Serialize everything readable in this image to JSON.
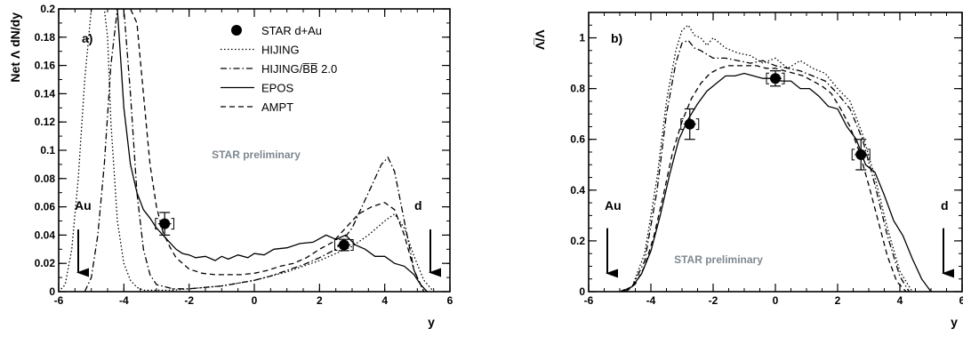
{
  "chart_data": [
    {
      "type": "line",
      "panel_label": "a)",
      "ylabel": "Net Λ dN/dy",
      "xlabel": "y",
      "xlim": [
        -6,
        6
      ],
      "ylim": [
        0,
        0.2
      ],
      "xticks": [
        "-6",
        "-4",
        "-2",
        "0",
        "2",
        "4",
        "6"
      ],
      "yticks": [
        "0",
        "0.02",
        "0.04",
        "0.06",
        "0.08",
        "0.1",
        "0.12",
        "0.14",
        "0.16",
        "0.18",
        "0.2"
      ],
      "watermark": "STAR preliminary",
      "arrows": [
        {
          "label": "Au",
          "x": -5.4,
          "y_from": 0.044,
          "y_to": 0.006
        },
        {
          "label": "d",
          "x": 5.4,
          "y_from": 0.044,
          "y_to": 0.006
        }
      ],
      "legend": [
        {
          "label": "STAR d+Au",
          "style": "marker"
        },
        {
          "label": "HIJING",
          "style": "dotted"
        },
        {
          "label": "HIJING/B̅B̅ 2.0",
          "style": "dashdot"
        },
        {
          "label": "EPOS",
          "style": "solid"
        },
        {
          "label": "AMPT",
          "style": "dashed"
        }
      ],
      "points": [
        {
          "x": -2.75,
          "y": 0.048,
          "yerr": 0.008,
          "xerr": 0.2
        },
        {
          "x": 2.75,
          "y": 0.033,
          "yerr": 0.004,
          "xerr": 0.2
        }
      ],
      "series": [
        {
          "name": "HIJING",
          "style": "dotted",
          "x": [
            -6,
            -5.8,
            -5.6,
            -5.4,
            -5.2,
            -5.0,
            -4.8,
            -4.7,
            -4.6,
            -4.5,
            -4.4,
            -4.2,
            -4.0,
            -3.8,
            -3.6,
            -3.4,
            -3.2,
            -3.0,
            -2.5,
            -2.0,
            -1.5,
            -1.0,
            -0.5,
            0,
            0.5,
            1.0,
            1.5,
            2.0,
            2.5,
            3.0,
            3.5,
            4.0,
            4.3,
            4.6,
            4.9,
            5.2,
            5.5
          ],
          "y": [
            0,
            0.005,
            0.03,
            0.08,
            0.15,
            0.2,
            0.2,
            0.2,
            0.2,
            0.18,
            0.12,
            0.05,
            0.02,
            0.008,
            0.003,
            0.001,
            0.001,
            0.001,
            0.001,
            0.002,
            0.003,
            0.004,
            0.006,
            0.008,
            0.011,
            0.014,
            0.018,
            0.022,
            0.027,
            0.032,
            0.04,
            0.05,
            0.055,
            0.045,
            0.025,
            0.008,
            0.0
          ]
        },
        {
          "name": "HIJING/B̅B̅ 2.0",
          "style": "dashdot",
          "x": [
            -5.2,
            -5.0,
            -4.8,
            -4.6,
            -4.4,
            -4.2,
            -4.0,
            -3.8,
            -3.6,
            -3.4,
            -3.2,
            -3.0,
            -2.5,
            -2.0,
            -1.5,
            -1.0,
            -0.5,
            0,
            0.5,
            1.0,
            1.5,
            2.0,
            2.5,
            3.0,
            3.3,
            3.6,
            3.9,
            4.1,
            4.3,
            4.6,
            4.9,
            5.2
          ],
          "y": [
            0.0,
            0.01,
            0.04,
            0.09,
            0.16,
            0.2,
            0.2,
            0.14,
            0.07,
            0.03,
            0.012,
            0.005,
            0.002,
            0.002,
            0.003,
            0.004,
            0.006,
            0.008,
            0.011,
            0.015,
            0.019,
            0.024,
            0.03,
            0.045,
            0.06,
            0.075,
            0.09,
            0.095,
            0.085,
            0.05,
            0.015,
            0.0
          ]
        },
        {
          "name": "EPOS",
          "style": "solid",
          "x": [
            -4.2,
            -4.0,
            -3.8,
            -3.6,
            -3.4,
            -3.2,
            -3.0,
            -2.8,
            -2.6,
            -2.4,
            -2.2,
            -2.0,
            -1.8,
            -1.5,
            -1.2,
            -1.0,
            -0.8,
            -0.5,
            -0.2,
            0,
            0.3,
            0.6,
            1.0,
            1.4,
            1.8,
            2.2,
            2.5,
            2.8,
            3.1,
            3.4,
            3.7,
            4.0,
            4.3,
            4.6,
            4.9,
            5.1,
            5.3
          ],
          "y": [
            0.2,
            0.13,
            0.09,
            0.07,
            0.058,
            0.052,
            0.045,
            0.04,
            0.035,
            0.03,
            0.027,
            0.026,
            0.024,
            0.025,
            0.022,
            0.025,
            0.023,
            0.026,
            0.024,
            0.027,
            0.026,
            0.03,
            0.031,
            0.034,
            0.035,
            0.04,
            0.037,
            0.04,
            0.033,
            0.03,
            0.025,
            0.025,
            0.02,
            0.018,
            0.012,
            0.005,
            0.0
          ]
        },
        {
          "name": "AMPT",
          "style": "dashed",
          "x": [
            -4.6,
            -4.4,
            -4.2,
            -4.0,
            -3.8,
            -3.6,
            -3.4,
            -3.2,
            -3.0,
            -2.8,
            -2.6,
            -2.4,
            -2.0,
            -1.6,
            -1.2,
            -0.8,
            -0.4,
            0,
            0.4,
            0.8,
            1.2,
            1.6,
            2.0,
            2.4,
            2.8,
            3.2,
            3.6,
            4.0,
            4.3,
            4.6,
            4.9,
            5.2
          ],
          "y": [
            0.2,
            0.2,
            0.2,
            0.2,
            0.2,
            0.19,
            0.14,
            0.09,
            0.06,
            0.042,
            0.032,
            0.024,
            0.016,
            0.013,
            0.012,
            0.012,
            0.012,
            0.013,
            0.015,
            0.018,
            0.02,
            0.024,
            0.03,
            0.035,
            0.045,
            0.055,
            0.06,
            0.063,
            0.058,
            0.04,
            0.015,
            0.0
          ]
        }
      ]
    },
    {
      "type": "line",
      "panel_label": "b)",
      "ylabel": "Λ̅/Λ",
      "xlabel": "y",
      "xlim": [
        -6,
        6
      ],
      "ylim": [
        0,
        1.1
      ],
      "xticks": [
        "-6",
        "-4",
        "-2",
        "0",
        "2",
        "4",
        "6"
      ],
      "yticks": [
        "0",
        "0.2",
        "0.4",
        "0.6",
        "0.8",
        "1"
      ],
      "watermark": "STAR preliminary",
      "arrows": [
        {
          "label": "Au",
          "x": -5.4,
          "y_from": 0.25,
          "y_to": 0.03
        },
        {
          "label": "d",
          "x": 5.4,
          "y_from": 0.25,
          "y_to": 0.03
        }
      ],
      "points": [
        {
          "x": -2.75,
          "y": 0.66,
          "yerr": 0.06,
          "xerr": 0.2
        },
        {
          "x": 0.0,
          "y": 0.84,
          "yerr": 0.03,
          "xerr": 0.2
        },
        {
          "x": 2.75,
          "y": 0.54,
          "yerr": 0.06,
          "xerr": 0.2
        }
      ],
      "series": [
        {
          "name": "HIJING",
          "style": "dotted",
          "x": [
            -5.0,
            -4.6,
            -4.2,
            -3.8,
            -3.5,
            -3.2,
            -3.0,
            -2.8,
            -2.6,
            -2.4,
            -2.2,
            -2.0,
            -1.6,
            -1.2,
            -0.8,
            -0.4,
            0,
            0.4,
            0.8,
            1.2,
            1.6,
            2.0,
            2.4,
            2.8,
            3.2,
            3.6,
            4.0,
            4.4
          ],
          "y": [
            0.0,
            0.02,
            0.15,
            0.45,
            0.75,
            0.95,
            1.03,
            1.05,
            1.01,
            1.0,
            0.97,
            1.0,
            0.96,
            0.94,
            0.93,
            0.9,
            0.92,
            0.88,
            0.91,
            0.88,
            0.86,
            0.8,
            0.75,
            0.62,
            0.45,
            0.25,
            0.08,
            0.0
          ]
        },
        {
          "name": "HIJING/B̅B̅ 2.0",
          "style": "dashdot",
          "x": [
            -5.0,
            -4.6,
            -4.2,
            -3.8,
            -3.5,
            -3.2,
            -3.0,
            -2.8,
            -2.6,
            -2.4,
            -2.0,
            -1.6,
            -1.2,
            -0.8,
            -0.4,
            0,
            0.4,
            0.8,
            1.2,
            1.6,
            2.0,
            2.4,
            2.8,
            3.2,
            3.6,
            4.0,
            4.3
          ],
          "y": [
            0.0,
            0.02,
            0.12,
            0.4,
            0.7,
            0.9,
            0.98,
            0.99,
            0.96,
            0.95,
            0.92,
            0.92,
            0.91,
            0.9,
            0.91,
            0.89,
            0.88,
            0.87,
            0.85,
            0.83,
            0.78,
            0.72,
            0.6,
            0.42,
            0.22,
            0.06,
            0.0
          ]
        },
        {
          "name": "EPOS",
          "style": "solid",
          "x": [
            -4.9,
            -4.6,
            -4.3,
            -4.0,
            -3.7,
            -3.4,
            -3.1,
            -2.8,
            -2.5,
            -2.2,
            -1.9,
            -1.6,
            -1.3,
            -1.0,
            -0.7,
            -0.4,
            -0.1,
            0.2,
            0.5,
            0.8,
            1.1,
            1.4,
            1.7,
            2.0,
            2.3,
            2.6,
            2.9,
            3.2,
            3.5,
            3.8,
            4.1,
            4.4,
            4.7,
            5.0
          ],
          "y": [
            0.0,
            0.02,
            0.07,
            0.16,
            0.3,
            0.46,
            0.6,
            0.68,
            0.74,
            0.79,
            0.82,
            0.85,
            0.85,
            0.86,
            0.85,
            0.84,
            0.84,
            0.83,
            0.83,
            0.8,
            0.8,
            0.77,
            0.73,
            0.72,
            0.65,
            0.6,
            0.5,
            0.47,
            0.38,
            0.28,
            0.22,
            0.13,
            0.05,
            0.0
          ]
        },
        {
          "name": "AMPT",
          "style": "dashed",
          "x": [
            -4.8,
            -4.5,
            -4.2,
            -3.9,
            -3.6,
            -3.3,
            -3.0,
            -2.7,
            -2.4,
            -2.1,
            -1.8,
            -1.5,
            -1.2,
            -0.9,
            -0.6,
            -0.3,
            0,
            0.3,
            0.6,
            0.9,
            1.2,
            1.5,
            1.8,
            2.1,
            2.4,
            2.7,
            3.0,
            3.3,
            3.6,
            3.9,
            4.2
          ],
          "y": [
            0.0,
            0.03,
            0.1,
            0.22,
            0.38,
            0.55,
            0.67,
            0.76,
            0.82,
            0.86,
            0.88,
            0.89,
            0.89,
            0.89,
            0.89,
            0.88,
            0.88,
            0.87,
            0.86,
            0.85,
            0.83,
            0.81,
            0.78,
            0.72,
            0.65,
            0.55,
            0.42,
            0.28,
            0.14,
            0.04,
            0.0
          ]
        }
      ]
    }
  ]
}
